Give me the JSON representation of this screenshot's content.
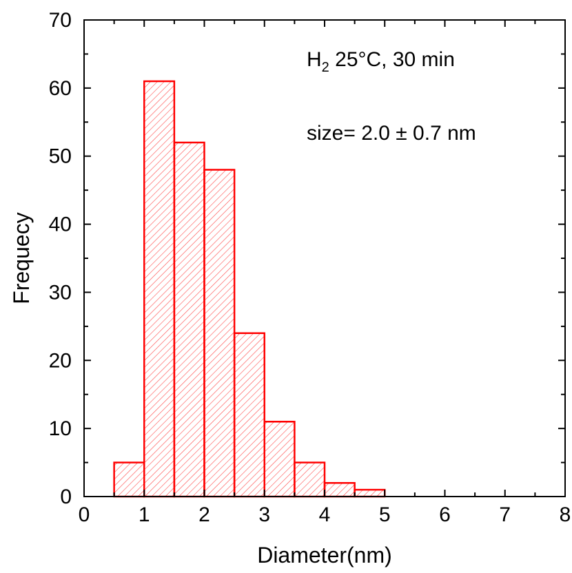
{
  "chart_data": {
    "type": "bar",
    "subtype": "histogram",
    "bin_edges": [
      0.5,
      1.0,
      1.5,
      2.0,
      2.5,
      3.0,
      3.5,
      4.0,
      4.5,
      5.0
    ],
    "values": [
      5,
      61,
      52,
      48,
      24,
      11,
      5,
      2,
      1
    ],
    "xlabel": "Diameter(nm)",
    "ylabel": "Frequecy",
    "xlim": [
      0,
      8
    ],
    "ylim": [
      0,
      70
    ],
    "xticks": [
      "0",
      "1",
      "2",
      "3",
      "4",
      "5",
      "6",
      "7",
      "8"
    ],
    "yticks": [
      "0",
      "10",
      "20",
      "30",
      "40",
      "50",
      "60",
      "70"
    ],
    "grid": false,
    "bar_color": "#ff0000",
    "fill": "hatched",
    "annotations": {
      "line1_main": "H",
      "line1_sub": "2",
      "line1_rest": " 25°C, 30 min",
      "line2": "size= 2.0 ± 0.7 nm"
    }
  }
}
